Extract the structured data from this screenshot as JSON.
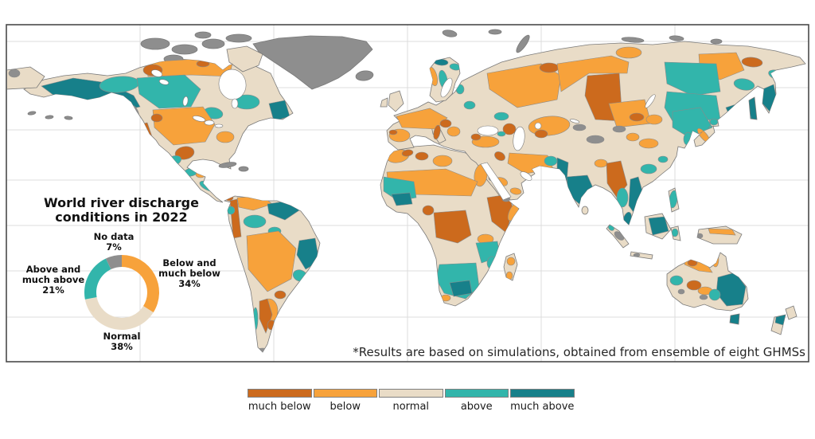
{
  "figure": {
    "background": "#ffffff",
    "frame_color": "#4a4a4a",
    "gridline_color": "#dcdcdc"
  },
  "palette": {
    "much_below": "#cc6a1d",
    "below": "#f7a23b",
    "normal": "#e9dcc7",
    "above": "#32b5ab",
    "much_above": "#17808a",
    "no_data": "#8e8e8e",
    "coast": "#7a7a7a",
    "basin_border": "#8a8a8a",
    "water": "#ffffff"
  },
  "inset": {
    "title_line1": "World river discharge",
    "title_line2": "conditions in 2022",
    "labels": {
      "no_data": {
        "l1": "No data",
        "pct": "7%"
      },
      "below": {
        "l1": "Below and",
        "l2": "much below",
        "pct": "34%"
      },
      "above": {
        "l1": "Above and",
        "l2": "much above",
        "pct": "21%"
      },
      "normal": {
        "l1": "Normal",
        "pct": "38%"
      }
    }
  },
  "chart_data": {
    "type": "pie",
    "subtype": "donut",
    "title": "World river discharge conditions in 2022",
    "labels": [
      "Below and much below",
      "Normal",
      "Above and much above",
      "No data"
    ],
    "values": [
      34,
      38,
      21,
      7
    ],
    "categories": [
      "below",
      "normal",
      "above",
      "no_data"
    ],
    "start_angle_deg": 0,
    "direction": "clockwise",
    "legend_position": "around-donut"
  },
  "footnote": "*Results are based on simulations, obtained from ensemble of eight GHMSs",
  "legend": {
    "items": [
      {
        "label": "much below",
        "category": "much_below"
      },
      {
        "label": "below",
        "category": "below"
      },
      {
        "label": "normal",
        "category": "normal"
      },
      {
        "label": "above",
        "category": "above"
      },
      {
        "label": "much above",
        "category": "much_above"
      }
    ]
  },
  "map_regions": [
    {
      "id": "north-america",
      "category": "normal",
      "layer": "b"
    },
    {
      "id": "greenland",
      "category": "no_data",
      "layer": "b"
    },
    {
      "id": "baffin",
      "category": "normal",
      "layer": "b"
    },
    {
      "id": "arctic-1",
      "category": "no_data",
      "layer": "b"
    },
    {
      "id": "arctic-2",
      "category": "no_data",
      "layer": "b"
    },
    {
      "id": "arctic-3",
      "category": "no_data",
      "layer": "b"
    },
    {
      "id": "arctic-4",
      "category": "no_data",
      "layer": "b"
    },
    {
      "id": "arctic-5",
      "category": "no_data",
      "layer": "b"
    },
    {
      "id": "arctic-6",
      "category": "no_data",
      "layer": "b"
    },
    {
      "id": "iceland",
      "category": "no_data",
      "layer": "b"
    },
    {
      "id": "svalbard",
      "category": "no_data",
      "layer": "b"
    },
    {
      "id": "franz-josef",
      "category": "no_data",
      "layer": "b"
    },
    {
      "id": "novaya-zemlya",
      "category": "no_data",
      "layer": "b"
    },
    {
      "id": "new-siberian-1",
      "category": "no_data",
      "layer": "b"
    },
    {
      "id": "new-siberian-2",
      "category": "no_data",
      "layer": "b"
    },
    {
      "id": "taymyr-coast",
      "category": "no_data",
      "layer": "b"
    },
    {
      "id": "chukotka-west-edge",
      "category": "normal",
      "layer": "b"
    },
    {
      "id": "chukotka-edge-gray",
      "category": "no_data",
      "layer": "p"
    },
    {
      "id": "aleutian-1",
      "category": "no_data",
      "layer": "b"
    },
    {
      "id": "aleutian-2",
      "category": "no_data",
      "layer": "b"
    },
    {
      "id": "aleutian-3",
      "category": "no_data",
      "layer": "b"
    },
    {
      "id": "cuba",
      "category": "no_data",
      "layer": "b"
    },
    {
      "id": "hispaniola",
      "category": "no_data",
      "layer": "b"
    },
    {
      "id": "south-america",
      "category": "normal",
      "layer": "b"
    },
    {
      "id": "africa",
      "category": "normal",
      "layer": "b"
    },
    {
      "id": "madagascar",
      "category": "normal",
      "layer": "b"
    },
    {
      "id": "eurasia",
      "category": "normal",
      "layer": "b"
    },
    {
      "id": "scandinavia",
      "category": "normal",
      "layer": "b"
    },
    {
      "id": "uk",
      "category": "normal",
      "layer": "b"
    },
    {
      "id": "ireland",
      "category": "normal",
      "layer": "b"
    },
    {
      "id": "italy",
      "category": "normal",
      "layer": "b"
    },
    {
      "id": "japan-hokkaido",
      "category": "normal",
      "layer": "b"
    },
    {
      "id": "japan-honshu",
      "category": "normal",
      "layer": "b"
    },
    {
      "id": "sakhalin",
      "category": "much_above",
      "layer": "b"
    },
    {
      "id": "sri-lanka",
      "category": "normal",
      "layer": "b"
    },
    {
      "id": "sumatra",
      "category": "normal",
      "layer": "b"
    },
    {
      "id": "java",
      "category": "normal",
      "layer": "b"
    },
    {
      "id": "borneo",
      "category": "normal",
      "layer": "b"
    },
    {
      "id": "sulawesi",
      "category": "normal",
      "layer": "b"
    },
    {
      "id": "philippines",
      "category": "normal",
      "layer": "b"
    },
    {
      "id": "papua",
      "category": "normal",
      "layer": "b"
    },
    {
      "id": "australia",
      "category": "normal",
      "layer": "b"
    },
    {
      "id": "tasmania",
      "category": "much_above",
      "layer": "b"
    },
    {
      "id": "nz-north",
      "category": "normal",
      "layer": "b"
    },
    {
      "id": "nz-south",
      "category": "normal",
      "layer": "b"
    },
    {
      "id": "alaska-basin",
      "category": "much_above",
      "layer": "p"
    },
    {
      "id": "yukon-basin",
      "category": "above",
      "layer": "p"
    },
    {
      "id": "bc-coast",
      "category": "no_data",
      "layer": "p"
    },
    {
      "id": "north-canada-band",
      "category": "below",
      "layer": "p"
    },
    {
      "id": "mackenzie-west",
      "category": "much_below",
      "layer": "p"
    },
    {
      "id": "keewatin",
      "category": "much_below",
      "layer": "p"
    },
    {
      "id": "central-canada",
      "category": "above",
      "layer": "p"
    },
    {
      "id": "quebec",
      "category": "above",
      "layer": "p"
    },
    {
      "id": "ontario",
      "category": "above",
      "layer": "p"
    },
    {
      "id": "labrador",
      "category": "much_above",
      "layer": "p"
    },
    {
      "id": "us-central",
      "category": "below",
      "layer": "p"
    },
    {
      "id": "us-nw",
      "category": "much_below",
      "layer": "p"
    },
    {
      "id": "california",
      "category": "much_below",
      "layer": "p"
    },
    {
      "id": "us-southeast",
      "category": "below",
      "layer": "p"
    },
    {
      "id": "mexico-north",
      "category": "much_below",
      "layer": "p"
    },
    {
      "id": "mexico-west",
      "category": "above",
      "layer": "p"
    },
    {
      "id": "mexico-south",
      "category": "above",
      "layer": "p"
    },
    {
      "id": "yucatan",
      "category": "below",
      "layer": "p"
    },
    {
      "id": "central-america",
      "category": "above",
      "layer": "p"
    },
    {
      "id": "panama-edge",
      "category": "much_below",
      "layer": "p"
    },
    {
      "id": "venezuela",
      "category": "below",
      "layer": "p"
    },
    {
      "id": "guyana-shield",
      "category": "much_above",
      "layer": "p"
    },
    {
      "id": "andes-coast-strip",
      "category": "much_below",
      "layer": "p"
    },
    {
      "id": "ecuador-coast",
      "category": "above",
      "layer": "p"
    },
    {
      "id": "amazon-upper",
      "category": "above",
      "layer": "p"
    },
    {
      "id": "rio-negro",
      "category": "above",
      "layer": "p"
    },
    {
      "id": "brazil-central",
      "category": "below",
      "layer": "p"
    },
    {
      "id": "brazil-east",
      "category": "much_above",
      "layer": "p"
    },
    {
      "id": "brazil-se",
      "category": "above",
      "layer": "p"
    },
    {
      "id": "uruguay",
      "category": "much_below",
      "layer": "p"
    },
    {
      "id": "argentina",
      "category": "below",
      "layer": "p"
    },
    {
      "id": "andes-argentina",
      "category": "much_below",
      "layer": "p"
    },
    {
      "id": "pampa-dry",
      "category": "much_below",
      "layer": "p"
    },
    {
      "id": "chile-south",
      "category": "above",
      "layer": "p"
    },
    {
      "id": "tierra-del-fuego",
      "category": "no_data",
      "layer": "p"
    },
    {
      "id": "morocco",
      "category": "below",
      "layer": "p"
    },
    {
      "id": "atlas",
      "category": "much_below",
      "layer": "p"
    },
    {
      "id": "algeria",
      "category": "much_below",
      "layer": "p"
    },
    {
      "id": "libya",
      "category": "below",
      "layer": "p"
    },
    {
      "id": "nile",
      "category": "below",
      "layer": "p"
    },
    {
      "id": "sahel",
      "category": "below",
      "layer": "p"
    },
    {
      "id": "west-africa-coast",
      "category": "above",
      "layer": "p"
    },
    {
      "id": "guinea-coast",
      "category": "much_above",
      "layer": "p"
    },
    {
      "id": "cameroon",
      "category": "much_below",
      "layer": "p"
    },
    {
      "id": "congo",
      "category": "much_below",
      "layer": "p"
    },
    {
      "id": "horn-of-africa",
      "category": "much_below",
      "layer": "p"
    },
    {
      "id": "somalia",
      "category": "below",
      "layer": "p"
    },
    {
      "id": "tanzania",
      "category": "below",
      "layer": "p"
    },
    {
      "id": "zambezi",
      "category": "above",
      "layer": "p"
    },
    {
      "id": "mozambique",
      "category": "above",
      "layer": "p"
    },
    {
      "id": "southern-africa",
      "category": "above",
      "layer": "p"
    },
    {
      "id": "orange-river",
      "category": "much_above",
      "layer": "p"
    },
    {
      "id": "cape-west",
      "category": "below",
      "layer": "p"
    },
    {
      "id": "madagascar-n",
      "category": "below",
      "layer": "p"
    },
    {
      "id": "madagascar-s",
      "category": "below",
      "layer": "p"
    },
    {
      "id": "norway",
      "category": "below",
      "layer": "p"
    },
    {
      "id": "sweden",
      "category": "above",
      "layer": "p"
    },
    {
      "id": "nordkapp",
      "category": "much_above",
      "layer": "p"
    },
    {
      "id": "kola",
      "category": "above",
      "layer": "p"
    },
    {
      "id": "europe-central",
      "category": "below",
      "layer": "p"
    },
    {
      "id": "danube",
      "category": "much_below",
      "layer": "p"
    },
    {
      "id": "iberia",
      "category": "below",
      "layer": "p"
    },
    {
      "id": "douro",
      "category": "much_below",
      "layer": "p"
    },
    {
      "id": "italy-basin",
      "category": "much_below",
      "layer": "p"
    },
    {
      "id": "balkans",
      "category": "below",
      "layer": "p"
    },
    {
      "id": "dnieper",
      "category": "above",
      "layer": "p"
    },
    {
      "id": "baltic-east",
      "category": "above",
      "layer": "p"
    },
    {
      "id": "russia-nw-teal",
      "category": "above",
      "layer": "p"
    },
    {
      "id": "russia-west",
      "category": "below",
      "layer": "p"
    },
    {
      "id": "pechora",
      "category": "much_below",
      "layer": "p"
    },
    {
      "id": "west-siberia-n",
      "category": "below",
      "layer": "p"
    },
    {
      "id": "ob-irtysh",
      "category": "much_below",
      "layer": "p"
    },
    {
      "id": "altai-south",
      "category": "below",
      "layer": "p"
    },
    {
      "id": "taymyr-orange",
      "category": "below",
      "layer": "p"
    },
    {
      "id": "kolyma-orange",
      "category": "below",
      "layer": "p"
    },
    {
      "id": "lena-east-teal-n",
      "category": "above",
      "layer": "p"
    },
    {
      "id": "lena-east-teal-s",
      "category": "above",
      "layer": "p"
    },
    {
      "id": "chukotka-dark",
      "category": "much_below",
      "layer": "p"
    },
    {
      "id": "chukotka-south",
      "category": "above",
      "layer": "p"
    },
    {
      "id": "magadan",
      "category": "above",
      "layer": "p"
    },
    {
      "id": "amur-mouth",
      "category": "much_above",
      "layer": "p"
    },
    {
      "id": "kamchatka",
      "category": "much_above",
      "layer": "p"
    },
    {
      "id": "baikal-south",
      "category": "much_below",
      "layer": "p"
    },
    {
      "id": "transbaikal",
      "category": "below",
      "layer": "p"
    },
    {
      "id": "ne-china",
      "category": "above",
      "layer": "p"
    },
    {
      "id": "korea",
      "category": "above",
      "layer": "p"
    },
    {
      "id": "hokkaido-basin",
      "category": "above",
      "layer": "p"
    },
    {
      "id": "honshu-basin",
      "category": "below",
      "layer": "p"
    },
    {
      "id": "kazakhstan",
      "category": "below",
      "layer": "p"
    },
    {
      "id": "volga-lower",
      "category": "much_below",
      "layer": "p"
    },
    {
      "id": "aral-basin",
      "category": "much_below",
      "layer": "p"
    },
    {
      "id": "tibet-gray",
      "category": "no_data",
      "layer": "p"
    },
    {
      "id": "tarim-gray",
      "category": "no_data",
      "layer": "p"
    },
    {
      "id": "mongolia-gray",
      "category": "no_data",
      "layer": "p"
    },
    {
      "id": "yellow-river",
      "category": "below",
      "layer": "p"
    },
    {
      "id": "china-nw-orange",
      "category": "below",
      "layer": "p"
    },
    {
      "id": "south-china",
      "category": "above",
      "layer": "p"
    },
    {
      "id": "china-coast-teal",
      "category": "above",
      "layer": "p"
    },
    {
      "id": "turkey",
      "category": "below",
      "layer": "p"
    },
    {
      "id": "anatolia-dark",
      "category": "much_below",
      "layer": "p"
    },
    {
      "id": "caucasus",
      "category": "above",
      "layer": "p"
    },
    {
      "id": "mesopotamia",
      "category": "much_below",
      "layer": "p"
    },
    {
      "id": "iran",
      "category": "below",
      "layer": "p"
    },
    {
      "id": "arabia-orange-1",
      "category": "below",
      "layer": "p"
    },
    {
      "id": "arabia-orange-2",
      "category": "below",
      "layer": "p"
    },
    {
      "id": "arabia-gray-1",
      "category": "no_data",
      "layer": "p"
    },
    {
      "id": "arabia-gray-2",
      "category": "no_data",
      "layer": "p"
    },
    {
      "id": "indus",
      "category": "much_above",
      "layer": "p"
    },
    {
      "id": "pakistan-teal",
      "category": "above",
      "layer": "p"
    },
    {
      "id": "india-south",
      "category": "much_above",
      "layer": "p"
    },
    {
      "id": "ne-india-orange",
      "category": "below",
      "layer": "p"
    },
    {
      "id": "myanmar",
      "category": "much_below",
      "layer": "p"
    },
    {
      "id": "thailand",
      "category": "above",
      "layer": "p"
    },
    {
      "id": "mekong",
      "category": "much_above",
      "layer": "p"
    },
    {
      "id": "malay",
      "category": "much_above",
      "layer": "p"
    },
    {
      "id": "sumatra-gray",
      "category": "no_data",
      "layer": "p"
    },
    {
      "id": "sumatra-teal",
      "category": "above",
      "layer": "p"
    },
    {
      "id": "java-gray",
      "category": "no_data",
      "layer": "p"
    },
    {
      "id": "borneo-dark",
      "category": "much_above",
      "layer": "p"
    },
    {
      "id": "sulawesi-teal",
      "category": "above",
      "layer": "p"
    },
    {
      "id": "philippines-teal",
      "category": "above",
      "layer": "p"
    },
    {
      "id": "papua-north",
      "category": "below",
      "layer": "p"
    },
    {
      "id": "papua-gray",
      "category": "no_data",
      "layer": "p"
    },
    {
      "id": "australia-north",
      "category": "below",
      "layer": "p"
    },
    {
      "id": "top-end-dark",
      "category": "much_below",
      "layer": "p"
    },
    {
      "id": "cape-york-west",
      "category": "below",
      "layer": "p"
    },
    {
      "id": "australia-west",
      "category": "above",
      "layer": "p"
    },
    {
      "id": "australia-centre-dark",
      "category": "much_below",
      "layer": "p"
    },
    {
      "id": "australia-centre",
      "category": "below",
      "layer": "p"
    },
    {
      "id": "australia-gray-1",
      "category": "no_data",
      "layer": "p"
    },
    {
      "id": "australia-gray-2",
      "category": "no_data",
      "layer": "p"
    },
    {
      "id": "murray-darling",
      "category": "much_above",
      "layer": "p"
    },
    {
      "id": "australia-se-fringe",
      "category": "above",
      "layer": "p"
    },
    {
      "id": "nz-south-top",
      "category": "much_above",
      "layer": "p"
    }
  ]
}
